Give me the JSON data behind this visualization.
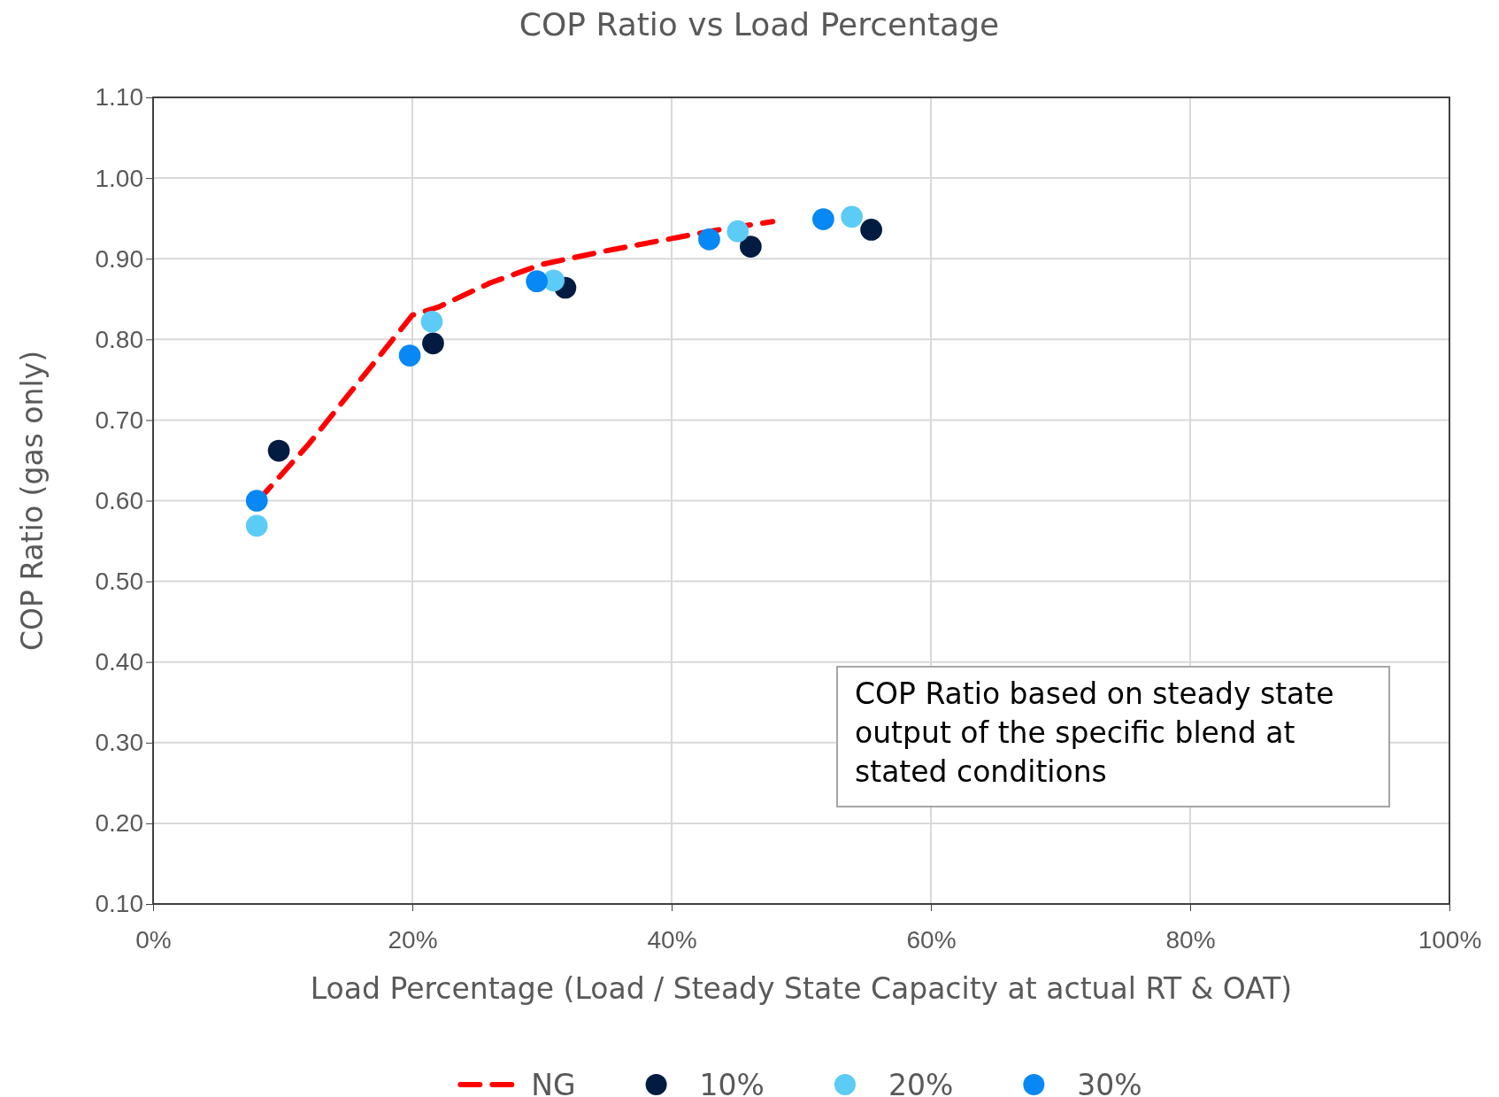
{
  "chart_data": {
    "type": "scatter",
    "title": "COP Ratio vs Load Percentage",
    "xlabel": "Load Percentage (Load / Steady State Capacity at actual RT & OAT)",
    "ylabel": "COP Ratio (gas only)",
    "xlim": [
      0,
      100
    ],
    "xticks": [
      {
        "value": 0,
        "label": "0%"
      },
      {
        "value": 20,
        "label": "20%"
      },
      {
        "value": 40,
        "label": "40%"
      },
      {
        "value": 60,
        "label": "60%"
      },
      {
        "value": 80,
        "label": "80%"
      },
      {
        "value": 100,
        "label": "100%"
      }
    ],
    "ylim": [
      0.1,
      1.1
    ],
    "yticks": [
      {
        "value": 0.1,
        "label": "0.10"
      },
      {
        "value": 0.2,
        "label": "0.20"
      },
      {
        "value": 0.3,
        "label": "0.30"
      },
      {
        "value": 0.4,
        "label": "0.40"
      },
      {
        "value": 0.5,
        "label": "0.50"
      },
      {
        "value": 0.6,
        "label": "0.60"
      },
      {
        "value": 0.7,
        "label": "0.70"
      },
      {
        "value": 0.8,
        "label": "0.80"
      },
      {
        "value": 0.9,
        "label": "0.90"
      },
      {
        "value": 1.0,
        "label": "1.00"
      },
      {
        "value": 1.1,
        "label": "1.10"
      }
    ],
    "grid": true,
    "legend": "bottom",
    "annotations": [
      "COP Ratio based on steady state output of the specific blend at stated conditions"
    ],
    "series": [
      {
        "name": "NG",
        "type": "line",
        "line_style": "dashed",
        "marker": "none",
        "color": "#ff0000",
        "x": [
          8.1,
          12,
          16,
          20,
          22,
          26,
          30,
          35,
          40,
          44,
          47.8
        ],
        "values": [
          0.6,
          0.67,
          0.75,
          0.83,
          0.84,
          0.87,
          0.893,
          0.91,
          0.925,
          0.937,
          0.946
        ]
      },
      {
        "name": "10%",
        "marker": "circle",
        "color": "#011c40",
        "x": [
          9.7,
          21.6,
          31.8,
          46.1,
          55.4
        ],
        "values": [
          0.662,
          0.795,
          0.864,
          0.915,
          0.936
        ]
      },
      {
        "name": "20%",
        "marker": "circle",
        "color": "#5ccbf5",
        "x": [
          8.0,
          21.5,
          30.9,
          45.1,
          53.9
        ],
        "values": [
          0.569,
          0.822,
          0.873,
          0.934,
          0.952
        ]
      },
      {
        "name": "30%",
        "marker": "circle",
        "color": "#0788f4",
        "x": [
          8.0,
          19.8,
          29.6,
          42.9,
          51.7
        ],
        "values": [
          0.6,
          0.78,
          0.872,
          0.924,
          0.949
        ]
      }
    ]
  }
}
